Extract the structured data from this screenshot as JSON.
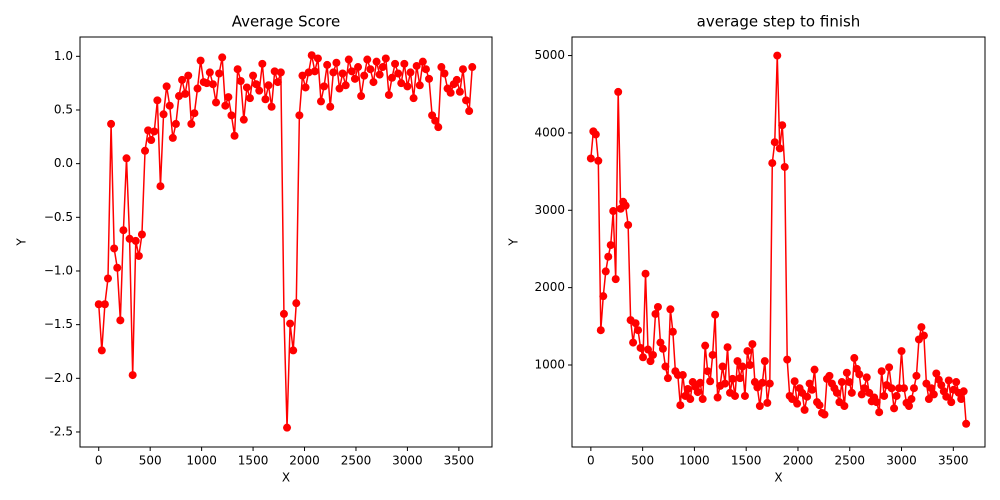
{
  "chart_data": [
    {
      "type": "line",
      "title": "Average Score",
      "x_label": "X",
      "y_label": "Y",
      "color": "#ff0000",
      "grid": false,
      "xlim": [
        -182,
        3822
      ],
      "ylim": [
        -2.64,
        1.18
      ],
      "xticks": [
        0,
        500,
        1000,
        1500,
        2000,
        2500,
        3000,
        3500
      ],
      "yticks": [
        -2.5,
        {
          "value": -2.0,
          "label": "−2.0"
        },
        {
          "value": -1.5,
          "label": "−1.5"
        },
        {
          "value": -1.0,
          "label": "−1.0"
        },
        {
          "value": -0.5,
          "label": "−0.5"
        },
        {
          "value": 0.0,
          "label": "0.0"
        },
        0.5,
        {
          "value": 1.0,
          "label": "1.0"
        }
      ],
      "x": [
        0,
        30,
        60,
        90,
        120,
        150,
        180,
        210,
        240,
        270,
        300,
        330,
        360,
        390,
        420,
        450,
        480,
        510,
        540,
        570,
        600,
        630,
        660,
        690,
        720,
        750,
        780,
        810,
        840,
        870,
        900,
        930,
        960,
        990,
        1020,
        1050,
        1080,
        1110,
        1140,
        1170,
        1200,
        1230,
        1260,
        1290,
        1320,
        1350,
        1380,
        1410,
        1440,
        1470,
        1500,
        1530,
        1560,
        1590,
        1620,
        1650,
        1680,
        1710,
        1740,
        1770,
        1800,
        1830,
        1860,
        1890,
        1920,
        1950,
        1980,
        2010,
        2040,
        2070,
        2100,
        2130,
        2160,
        2190,
        2220,
        2250,
        2280,
        2310,
        2340,
        2370,
        2400,
        2430,
        2460,
        2490,
        2520,
        2550,
        2580,
        2610,
        2640,
        2670,
        2700,
        2730,
        2760,
        2790,
        2820,
        2850,
        2880,
        2910,
        2940,
        2970,
        3000,
        3030,
        3060,
        3090,
        3120,
        3150,
        3180,
        3210,
        3240,
        3270,
        3300,
        3330,
        3360,
        3390,
        3420,
        3450,
        3480,
        3510,
        3540,
        3570,
        3600,
        3630
      ],
      "values": [
        -1.31,
        -1.74,
        -1.31,
        -1.07,
        0.37,
        -0.79,
        -0.97,
        -1.46,
        -0.62,
        0.05,
        -0.7,
        -1.97,
        -0.72,
        -0.86,
        -0.66,
        0.12,
        0.31,
        0.22,
        0.3,
        0.59,
        -0.21,
        0.46,
        0.72,
        0.54,
        0.24,
        0.37,
        0.63,
        0.78,
        0.65,
        0.82,
        0.37,
        0.47,
        0.7,
        0.96,
        0.76,
        0.75,
        0.85,
        0.74,
        0.57,
        0.84,
        0.99,
        0.54,
        0.62,
        0.45,
        0.26,
        0.88,
        0.77,
        0.41,
        0.71,
        0.61,
        0.82,
        0.74,
        0.68,
        0.93,
        0.6,
        0.73,
        0.53,
        0.86,
        0.76,
        0.85,
        -1.4,
        -2.46,
        -1.49,
        -1.74,
        -1.3,
        0.45,
        0.82,
        0.71,
        0.85,
        1.01,
        0.86,
        0.98,
        0.58,
        0.72,
        0.92,
        0.53,
        0.85,
        0.94,
        0.7,
        0.84,
        0.73,
        0.97,
        0.86,
        0.79,
        0.9,
        0.63,
        0.82,
        0.97,
        0.88,
        0.76,
        0.95,
        0.83,
        0.9,
        0.98,
        0.64,
        0.8,
        0.93,
        0.84,
        0.75,
        0.93,
        0.72,
        0.85,
        0.61,
        0.91,
        0.73,
        0.95,
        0.88,
        0.79,
        0.45,
        0.4,
        0.34,
        0.9,
        0.84,
        0.7,
        0.66,
        0.74,
        0.78,
        0.67,
        0.88,
        0.59,
        0.49,
        0.9
      ]
    },
    {
      "type": "line",
      "title": "average step to finish",
      "x_label": "X",
      "y_label": "Y",
      "color": "#ff0000",
      "grid": false,
      "xlim": [
        -182,
        3806
      ],
      "ylim": [
        -60,
        5240
      ],
      "xticks": [
        0,
        500,
        1000,
        1500,
        2000,
        2500,
        3000,
        3500
      ],
      "yticks": [
        1000,
        2000,
        3000,
        4000,
        5000
      ],
      "x": [
        0,
        24,
        48,
        72,
        96,
        120,
        144,
        168,
        192,
        216,
        240,
        264,
        288,
        312,
        336,
        360,
        384,
        408,
        432,
        456,
        480,
        504,
        528,
        552,
        576,
        600,
        624,
        648,
        672,
        696,
        720,
        744,
        768,
        792,
        816,
        840,
        864,
        888,
        912,
        936,
        960,
        984,
        1008,
        1032,
        1056,
        1080,
        1104,
        1128,
        1152,
        1176,
        1200,
        1224,
        1248,
        1272,
        1296,
        1320,
        1344,
        1368,
        1392,
        1416,
        1440,
        1464,
        1488,
        1512,
        1536,
        1560,
        1584,
        1608,
        1632,
        1656,
        1680,
        1704,
        1728,
        1752,
        1776,
        1800,
        1824,
        1848,
        1872,
        1896,
        1920,
        1944,
        1968,
        1992,
        2016,
        2040,
        2064,
        2088,
        2112,
        2136,
        2160,
        2184,
        2208,
        2232,
        2256,
        2280,
        2304,
        2328,
        2352,
        2376,
        2400,
        2424,
        2448,
        2472,
        2496,
        2520,
        2544,
        2568,
        2592,
        2616,
        2640,
        2664,
        2688,
        2712,
        2736,
        2760,
        2784,
        2808,
        2832,
        2856,
        2880,
        2904,
        2928,
        2952,
        2976,
        3000,
        3024,
        3048,
        3072,
        3096,
        3120,
        3144,
        3168,
        3192,
        3216,
        3240,
        3264,
        3288,
        3312,
        3336,
        3360,
        3384,
        3408,
        3432,
        3456,
        3480,
        3504,
        3528,
        3552,
        3576,
        3600,
        3624
      ],
      "values": [
        3670,
        4020,
        3980,
        3640,
        1450,
        1890,
        2210,
        2400,
        2550,
        2990,
        2110,
        4530,
        3020,
        3110,
        3060,
        2810,
        1580,
        1290,
        1540,
        1450,
        1220,
        1100,
        2180,
        1200,
        1050,
        1130,
        1660,
        1750,
        1290,
        1210,
        980,
        830,
        1720,
        1430,
        920,
        870,
        480,
        870,
        600,
        690,
        560,
        780,
        720,
        650,
        770,
        560,
        1250,
        920,
        790,
        1130,
        1650,
        580,
        730,
        980,
        760,
        1230,
        640,
        820,
        600,
        1050,
        830,
        980,
        600,
        1180,
        1000,
        1270,
        780,
        710,
        470,
        770,
        1050,
        510,
        760,
        3610,
        3880,
        5000,
        3800,
        4100,
        3560,
        1070,
        600,
        560,
        790,
        500,
        700,
        640,
        420,
        590,
        760,
        680,
        940,
        520,
        480,
        380,
        360,
        820,
        860,
        760,
        700,
        640,
        520,
        780,
        470,
        900,
        780,
        640,
        1090,
        950,
        880,
        620,
        700,
        840,
        640,
        530,
        580,
        520,
        390,
        920,
        600,
        740,
        970,
        700,
        440,
        600,
        700,
        1180,
        700,
        510,
        470,
        560,
        700,
        860,
        1330,
        1490,
        1380,
        760,
        560,
        700,
        620,
        890,
        810,
        740,
        660,
        590,
        800,
        520,
        680,
        780,
        640,
        560,
        660,
        240
      ]
    }
  ]
}
